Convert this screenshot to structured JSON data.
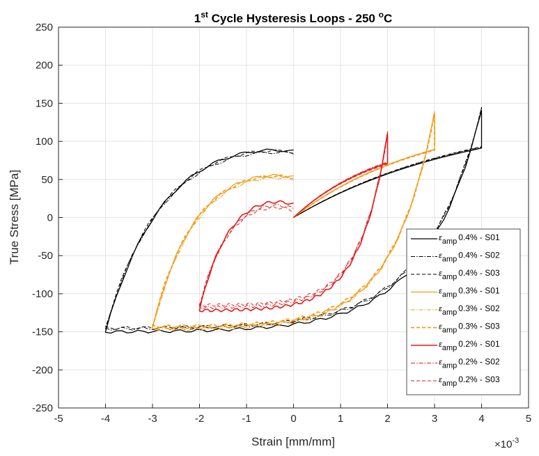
{
  "chart_data": {
    "type": "line",
    "title": {
      "prefix": "1",
      "superscript": "st",
      "main": " Cycle Hysteresis Loops - 250 ",
      "deg": "o",
      "suffix": "C"
    },
    "xlabel": "Strain [mm/mm]",
    "ylabel": "True Stress [MPa]",
    "x_multiplier": {
      "base": "×10",
      "exp": "-3"
    },
    "xlim": [
      -5,
      5
    ],
    "ylim": [
      -250,
      250
    ],
    "xticks": [
      -5,
      -4,
      -3,
      -2,
      -1,
      0,
      1,
      2,
      3,
      4,
      5
    ],
    "yticks": [
      -250,
      -200,
      -150,
      -100,
      -50,
      0,
      50,
      100,
      150,
      200,
      250
    ],
    "grid": true,
    "legend_position": "bottom-right",
    "series": [
      {
        "name": "0.4% - S01",
        "symbol": "ε",
        "sub": "amp",
        "amp": 4,
        "peak": 140,
        "trough": -150,
        "end": 87,
        "jit": 0,
        "color": "#000000",
        "dash": "",
        "width": 1.3
      },
      {
        "name": "0.4% - S02",
        "symbol": "ε",
        "sub": "amp",
        "amp": 4,
        "peak": 142,
        "trough": -146,
        "end": 84,
        "jit": 1,
        "color": "#000000",
        "dash": "6,2,1.5,2",
        "width": 1.0
      },
      {
        "name": "0.4% - S03",
        "symbol": "ε",
        "sub": "amp",
        "amp": 4,
        "peak": 143,
        "trough": -145,
        "end": 86,
        "jit": 2,
        "color": "#000000",
        "dash": "5,3",
        "width": 1.0
      },
      {
        "name": "0.3% - S01",
        "symbol": "ε",
        "sub": "amp",
        "amp": 3,
        "peak": 137,
        "trough": -145,
        "end": 53,
        "jit": 0,
        "color": "#f39c12",
        "dash": "",
        "width": 1.3
      },
      {
        "name": "0.3% - S02",
        "symbol": "ε",
        "sub": "amp",
        "amp": 3,
        "peak": 138,
        "trough": -147,
        "end": 50,
        "jit": 1,
        "color": "#f39c12",
        "dash": "6,2,1.5,2",
        "width": 1.0
      },
      {
        "name": "0.3% - S03",
        "symbol": "ε",
        "sub": "amp",
        "amp": 3,
        "peak": 136,
        "trough": -143,
        "end": 52,
        "jit": 2,
        "color": "#f39c12",
        "dash": "5,3",
        "width": 1.8
      },
      {
        "name": "0.2% - S01",
        "symbol": "ε",
        "sub": "amp",
        "amp": 2,
        "peak": 110,
        "trough": -122,
        "end": 17,
        "jit": 0,
        "color": "#e41a1c",
        "dash": "",
        "width": 1.6
      },
      {
        "name": "0.2% - S02",
        "symbol": "ε",
        "sub": "amp",
        "amp": 2,
        "peak": 112,
        "trough": -118,
        "end": 12,
        "jit": 1,
        "color": "#e41a1c",
        "dash": "6,2,1.5,2",
        "width": 1.0
      },
      {
        "name": "0.2% - S03",
        "symbol": "ε",
        "sub": "amp",
        "amp": 2,
        "peak": 108,
        "trough": -115,
        "end": 9,
        "jit": 2,
        "color": "#e41a1c",
        "dash": "5,3",
        "width": 1.0
      }
    ]
  }
}
